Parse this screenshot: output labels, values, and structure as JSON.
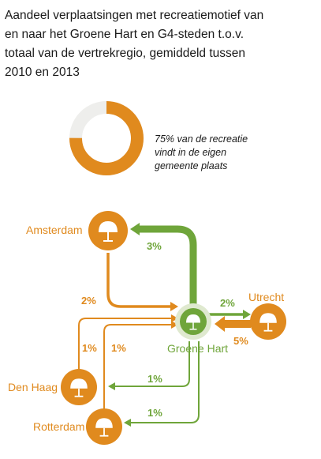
{
  "title_lines": [
    "Aandeel verplaatsingen met recreatiemotief van",
    "en naar het Groene Hart en G4-steden t.o.v.",
    "totaal van de vertrekregio, gemiddeld tussen",
    "2010 en 2013"
  ],
  "donut": {
    "value": 75,
    "note_lines": [
      "75% van de recreatie",
      "vindt in de eigen",
      "gemeente plaats"
    ]
  },
  "cities": {
    "amsterdam": "Amsterdam",
    "den_haag": "Den Haag",
    "rotterdam": "Rotterdam",
    "utrecht": "Utrecht",
    "groene_hart": "Groene Hart"
  },
  "flows": {
    "gh_to_amsterdam": "3%",
    "amsterdam_to_gh": "2%",
    "gh_to_utrecht": "2%",
    "utrecht_to_gh": "5%",
    "den_haag_to_gh": "1%",
    "rotterdam_to_gh": "1%",
    "gh_to_den_haag": "1%",
    "gh_to_rotterdam": "1%"
  },
  "colors": {
    "orange": "#e08a1e",
    "green": "#6fa53a",
    "donut_track": "#eeeeec"
  },
  "icon": "parasol-icon"
}
